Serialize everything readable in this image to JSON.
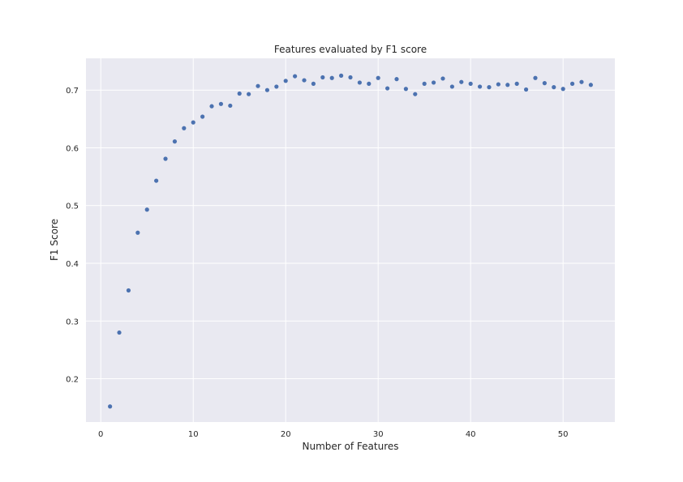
{
  "chart_data": {
    "type": "scatter",
    "title": "Features evaluated by F1 score",
    "xlabel": "Number of Features",
    "ylabel": "F1 Score",
    "xlim": [
      -1.6,
      55.6
    ],
    "ylim": [
      0.125,
      0.755
    ],
    "xticks": [
      0,
      10,
      20,
      30,
      40,
      50
    ],
    "yticks": [
      0.2,
      0.3,
      0.4,
      0.5,
      0.6,
      0.7
    ],
    "ytick_labels": [
      "0.2",
      "0.3",
      "0.4",
      "0.5",
      "0.6",
      "0.7"
    ],
    "grid": true,
    "background_color": "#e9e9f1",
    "grid_color": "#ffffff",
    "point_color": "#4c72b0",
    "series": [
      {
        "x": [
          1,
          2,
          3,
          4,
          5,
          6,
          7,
          8,
          9,
          10,
          11,
          12,
          13,
          14,
          15,
          16,
          17,
          18,
          19,
          20,
          21,
          22,
          23,
          24,
          25,
          26,
          27,
          28,
          29,
          30,
          31,
          32,
          33,
          34,
          35,
          36,
          37,
          38,
          39,
          40,
          41,
          42,
          43,
          44,
          45,
          46,
          47,
          48,
          49,
          50,
          51,
          52,
          53
        ],
        "y": [
          0.152,
          0.28,
          0.353,
          0.453,
          0.493,
          0.543,
          0.581,
          0.611,
          0.634,
          0.644,
          0.654,
          0.672,
          0.676,
          0.673,
          0.694,
          0.693,
          0.707,
          0.7,
          0.706,
          0.716,
          0.724,
          0.717,
          0.711,
          0.722,
          0.721,
          0.725,
          0.722,
          0.713,
          0.711,
          0.721,
          0.703,
          0.719,
          0.702,
          0.693,
          0.711,
          0.713,
          0.72,
          0.706,
          0.714,
          0.711,
          0.706,
          0.705,
          0.71,
          0.709,
          0.711,
          0.701,
          0.721,
          0.712,
          0.705,
          0.702,
          0.711,
          0.714,
          0.709
        ]
      }
    ]
  }
}
